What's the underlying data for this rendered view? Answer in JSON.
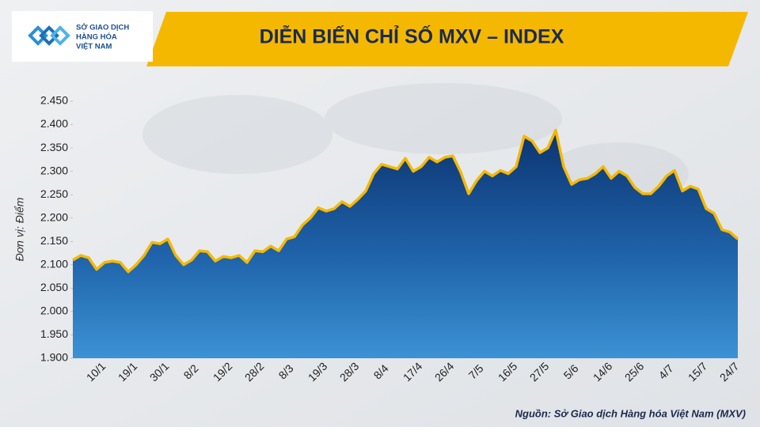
{
  "header": {
    "logo_lines": [
      "SỞ GIAO DỊCH",
      "HÀNG HÓA",
      "VIỆT NAM"
    ]
  },
  "chart_data": {
    "type": "area",
    "title": "DIỄN BIẾN CHỈ SỐ MXV – INDEX",
    "ylabel": "Đơn vị: Điểm",
    "source": "Nguồn: Sở Giao dịch Hàng hóa Việt Nam (MXV)",
    "color": "#f5b800",
    "categories": [
      null,
      null,
      null,
      "10/1",
      null,
      null,
      null,
      "19/1",
      null,
      null,
      null,
      "30/1",
      null,
      null,
      null,
      "8/2",
      null,
      null,
      null,
      "19/2",
      null,
      null,
      null,
      "28/2",
      null,
      null,
      null,
      "8/3",
      null,
      null,
      null,
      "19/3",
      null,
      null,
      null,
      "28/3",
      null,
      null,
      null,
      "8/4",
      null,
      null,
      null,
      "17/4",
      null,
      null,
      null,
      "26/4",
      null,
      null,
      null,
      "7/5",
      null,
      null,
      null,
      "16/5",
      null,
      null,
      null,
      "27/5",
      null,
      null,
      null,
      "5/6",
      null,
      null,
      null,
      "14/6",
      null,
      null,
      null,
      "25/6",
      null,
      null,
      null,
      "4/7",
      null,
      null,
      null,
      "15/7",
      null,
      null,
      null,
      "24/7",
      null
    ],
    "values": [
      2110,
      2120,
      2115,
      2090,
      2105,
      2108,
      2105,
      2085,
      2100,
      2120,
      2148,
      2145,
      2155,
      2120,
      2100,
      2110,
      2130,
      2128,
      2108,
      2118,
      2115,
      2120,
      2105,
      2130,
      2128,
      2140,
      2130,
      2155,
      2160,
      2185,
      2200,
      2222,
      2215,
      2220,
      2235,
      2225,
      2240,
      2258,
      2295,
      2315,
      2310,
      2305,
      2328,
      2300,
      2310,
      2330,
      2320,
      2330,
      2333,
      2298,
      2252,
      2280,
      2300,
      2290,
      2302,
      2295,
      2310,
      2375,
      2365,
      2340,
      2350,
      2388,
      2310,
      2272,
      2282,
      2285,
      2295,
      2310,
      2285,
      2300,
      2290,
      2265,
      2252,
      2252,
      2268,
      2290,
      2302,
      2258,
      2268,
      2262,
      2220,
      2210,
      2175,
      2170,
      2155
    ],
    "ylim": [
      1900,
      2450
    ],
    "yticks": [
      {
        "value": 1900,
        "label": "1.900"
      },
      {
        "value": 1950,
        "label": "1.950"
      },
      {
        "value": 2000,
        "label": "2.000"
      },
      {
        "value": 2050,
        "label": "2.050"
      },
      {
        "value": 2100,
        "label": "2.100"
      },
      {
        "value": 2150,
        "label": "2.150"
      },
      {
        "value": 2200,
        "label": "2.200"
      },
      {
        "value": 2250,
        "label": "2.250"
      },
      {
        "value": 2300,
        "label": "2.300"
      },
      {
        "value": 2350,
        "label": "2.350"
      },
      {
        "value": 2400,
        "label": "2.400"
      },
      {
        "value": 2450,
        "label": "2.450"
      }
    ],
    "grid": false
  }
}
